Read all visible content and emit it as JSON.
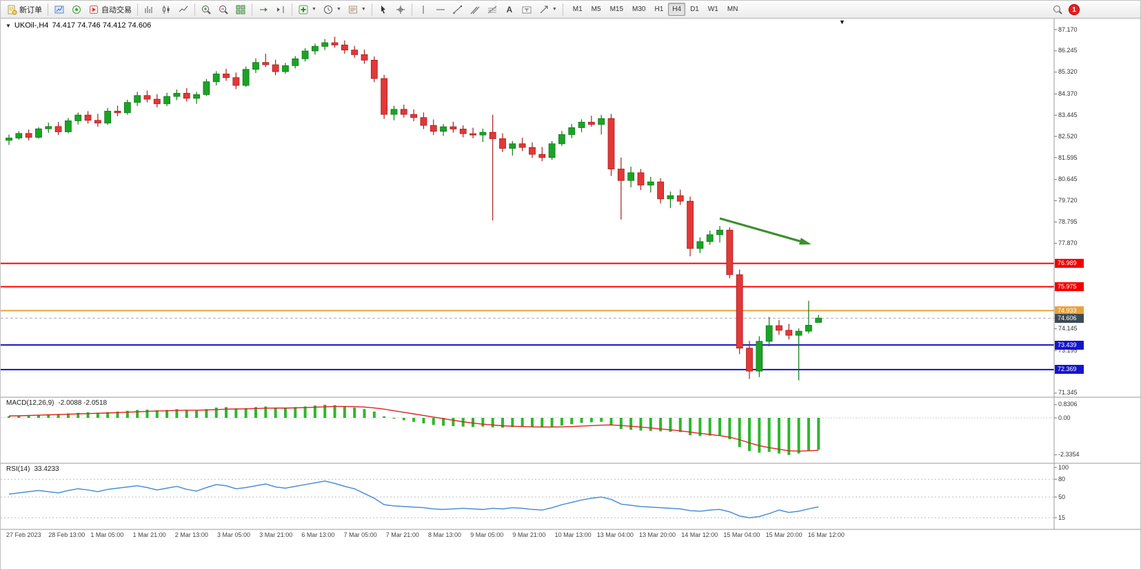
{
  "toolbar": {
    "new_order_label": "新订单",
    "auto_trading_label": "自动交易",
    "timeframes": [
      "M1",
      "M5",
      "M15",
      "M30",
      "H1",
      "H4",
      "D1",
      "W1",
      "MN"
    ],
    "active_timeframe": "H4",
    "notification_count": "1"
  },
  "chart": {
    "title_symbol": "UKOil-,H4",
    "title_ohlc": "74.417 74.746 74.412 74.606"
  },
  "colors": {
    "bull": "#1ca327",
    "bull_dark": "#0c7a14",
    "bear": "#e23838",
    "bear_dark": "#a81d1d",
    "macd_hist": "#2db82d",
    "macd_signal": "#e02020",
    "rsi": "#4a8fd6",
    "arrow": "#3c8f2f",
    "hline_red": "#ff0000",
    "hline_orange": "#e8a33c",
    "hline_blue": "#1212c4"
  },
  "chart_data": {
    "type": "candlestick",
    "symbol": "UKOil-",
    "timeframe": "H4",
    "price_min": 71.345,
    "price_max": 87.17,
    "current_price": 74.606,
    "candles": [
      [
        82.35,
        82.6,
        82.15,
        82.45
      ],
      [
        82.45,
        82.75,
        82.38,
        82.65
      ],
      [
        82.65,
        82.82,
        82.35,
        82.48
      ],
      [
        82.48,
        82.92,
        82.42,
        82.85
      ],
      [
        82.85,
        83.12,
        82.68,
        82.95
      ],
      [
        82.95,
        83.15,
        82.58,
        82.72
      ],
      [
        82.72,
        83.32,
        82.66,
        83.2
      ],
      [
        83.2,
        83.56,
        83.04,
        83.45
      ],
      [
        83.45,
        83.62,
        83.08,
        83.22
      ],
      [
        83.22,
        83.5,
        82.94,
        83.1
      ],
      [
        83.1,
        83.76,
        83.02,
        83.62
      ],
      [
        83.62,
        83.86,
        83.4,
        83.55
      ],
      [
        83.55,
        84.12,
        83.46,
        84.0
      ],
      [
        84.0,
        84.46,
        83.84,
        84.3
      ],
      [
        84.3,
        84.52,
        84.0,
        84.14
      ],
      [
        84.14,
        84.36,
        83.78,
        83.94
      ],
      [
        83.94,
        84.42,
        83.84,
        84.26
      ],
      [
        84.26,
        84.56,
        84.1,
        84.4
      ],
      [
        84.4,
        84.62,
        84.04,
        84.18
      ],
      [
        84.18,
        84.46,
        83.94,
        84.34
      ],
      [
        84.34,
        85.02,
        84.28,
        84.9
      ],
      [
        84.9,
        85.36,
        84.74,
        85.24
      ],
      [
        85.24,
        85.46,
        84.94,
        85.08
      ],
      [
        85.08,
        85.3,
        84.58,
        84.74
      ],
      [
        84.74,
        85.56,
        84.68,
        85.44
      ],
      [
        85.44,
        85.92,
        85.28,
        85.74
      ],
      [
        85.74,
        86.12,
        85.54,
        85.64
      ],
      [
        85.64,
        85.86,
        85.18,
        85.34
      ],
      [
        85.34,
        85.72,
        85.24,
        85.6
      ],
      [
        85.6,
        86.02,
        85.48,
        85.9
      ],
      [
        85.9,
        86.36,
        85.78,
        86.24
      ],
      [
        86.24,
        86.56,
        86.08,
        86.44
      ],
      [
        86.44,
        86.76,
        86.28,
        86.6
      ],
      [
        86.6,
        86.86,
        86.38,
        86.5
      ],
      [
        86.5,
        86.7,
        86.12,
        86.28
      ],
      [
        86.28,
        86.46,
        85.94,
        86.08
      ],
      [
        86.08,
        86.3,
        85.68,
        85.84
      ],
      [
        85.84,
        86.0,
        84.88,
        85.04
      ],
      [
        85.04,
        85.2,
        83.28,
        83.48
      ],
      [
        83.48,
        83.86,
        83.22,
        83.7
      ],
      [
        83.7,
        83.9,
        83.34,
        83.48
      ],
      [
        83.48,
        83.7,
        83.18,
        83.34
      ],
      [
        83.34,
        83.56,
        82.84,
        83.0
      ],
      [
        83.0,
        83.26,
        82.58,
        82.74
      ],
      [
        82.74,
        83.06,
        82.54,
        82.94
      ],
      [
        82.94,
        83.16,
        82.68,
        82.84
      ],
      [
        82.84,
        83.0,
        82.48,
        82.64
      ],
      [
        82.64,
        82.9,
        82.44,
        82.58
      ],
      [
        82.58,
        82.86,
        82.28,
        82.7
      ],
      [
        82.7,
        83.46,
        78.86,
        82.42
      ],
      [
        82.42,
        82.66,
        81.84,
        82.0
      ],
      [
        82.0,
        82.32,
        81.68,
        82.2
      ],
      [
        82.2,
        82.46,
        81.88,
        82.04
      ],
      [
        82.04,
        82.26,
        81.58,
        81.74
      ],
      [
        81.74,
        82.06,
        81.44,
        81.6
      ],
      [
        81.6,
        82.32,
        81.5,
        82.2
      ],
      [
        82.2,
        82.76,
        82.1,
        82.6
      ],
      [
        82.6,
        83.06,
        82.44,
        82.9
      ],
      [
        82.9,
        83.26,
        82.7,
        83.14
      ],
      [
        83.14,
        83.42,
        82.94,
        83.04
      ],
      [
        83.04,
        83.46,
        82.6,
        83.3
      ],
      [
        83.3,
        83.5,
        80.8,
        81.1
      ],
      [
        81.1,
        81.6,
        78.9,
        80.6
      ],
      [
        80.6,
        81.2,
        80.3,
        80.94
      ],
      [
        80.94,
        81.1,
        80.18,
        80.4
      ],
      [
        80.4,
        80.76,
        80.08,
        80.54
      ],
      [
        80.54,
        80.7,
        79.6,
        79.8
      ],
      [
        79.8,
        80.12,
        79.4,
        79.94
      ],
      [
        79.94,
        80.2,
        79.54,
        79.7
      ],
      [
        79.7,
        79.9,
        77.3,
        77.64
      ],
      [
        77.64,
        78.12,
        77.44,
        77.94
      ],
      [
        77.94,
        78.42,
        77.8,
        78.24
      ],
      [
        78.24,
        78.62,
        77.9,
        78.44
      ],
      [
        78.44,
        78.56,
        76.34,
        76.5
      ],
      [
        76.5,
        76.72,
        73.04,
        73.3
      ],
      [
        73.3,
        73.62,
        71.96,
        72.3
      ],
      [
        72.3,
        73.82,
        72.04,
        73.6
      ],
      [
        73.6,
        74.66,
        73.38,
        74.28
      ],
      [
        74.28,
        74.52,
        73.88,
        74.08
      ],
      [
        74.08,
        74.36,
        73.68,
        73.86
      ],
      [
        73.86,
        74.16,
        71.9,
        74.04
      ],
      [
        74.04,
        75.36,
        73.94,
        74.3
      ],
      [
        74.42,
        74.75,
        74.41,
        74.61
      ]
    ],
    "hlines": [
      {
        "price": 76.989,
        "color": "#ff0000",
        "width": 2
      },
      {
        "price": 75.975,
        "color": "#ff0000",
        "width": 2
      },
      {
        "price": 74.933,
        "color": "#e8a33c",
        "width": 2
      },
      {
        "price": 73.439,
        "color": "#1212c4",
        "width": 2
      },
      {
        "price": 72.369,
        "color": "#1212c4",
        "width": 2
      }
    ],
    "arrow": {
      "from": {
        "candle": 72,
        "price": 78.95
      },
      "to": {
        "candle": 81,
        "price": 77.85
      }
    },
    "price_ticks": [
      "87.170",
      "86.245",
      "85.320",
      "84.370",
      "83.445",
      "82.520",
      "81.595",
      "80.645",
      "79.720",
      "78.795",
      "77.870",
      "74.145",
      "73.195",
      "71.345"
    ],
    "price_badges": [
      {
        "value": "76.989",
        "bg": "#f20000"
      },
      {
        "value": "75.975",
        "bg": "#f20000"
      },
      {
        "value": "74.933",
        "bg": "#e8a33c"
      },
      {
        "value": "74.606",
        "bg": "#3d4a56"
      },
      {
        "value": "73.439",
        "bg": "#1414cc"
      },
      {
        "value": "72.369",
        "bg": "#1414cc"
      }
    ],
    "macd": {
      "label": "MACD(12,26,9)",
      "values_text": "-2.0088 -2.0518",
      "axis_ticks": [
        "0.8306",
        "0.00",
        "-2.3354"
      ],
      "max": 0.8306,
      "min": -2.3354,
      "histogram": [
        0.1,
        0.12,
        0.15,
        0.18,
        0.22,
        0.25,
        0.28,
        0.32,
        0.35,
        0.33,
        0.36,
        0.4,
        0.45,
        0.5,
        0.52,
        0.48,
        0.5,
        0.55,
        0.5,
        0.45,
        0.55,
        0.65,
        0.68,
        0.6,
        0.62,
        0.68,
        0.72,
        0.65,
        0.62,
        0.68,
        0.72,
        0.78,
        0.83,
        0.8,
        0.72,
        0.65,
        0.55,
        0.4,
        0.1,
        -0.05,
        -0.15,
        -0.25,
        -0.35,
        -0.45,
        -0.5,
        -0.52,
        -0.55,
        -0.58,
        -0.55,
        -0.6,
        -0.62,
        -0.58,
        -0.55,
        -0.58,
        -0.6,
        -0.55,
        -0.48,
        -0.4,
        -0.32,
        -0.28,
        -0.25,
        -0.45,
        -0.7,
        -0.75,
        -0.8,
        -0.82,
        -0.85,
        -0.88,
        -0.9,
        -1.1,
        -1.15,
        -1.12,
        -1.1,
        -1.35,
        -1.85,
        -2.1,
        -2.2,
        -2.15,
        -2.25,
        -2.34,
        -2.25,
        -2.1,
        -2.01
      ],
      "signal": [
        0.12,
        0.13,
        0.15,
        0.17,
        0.19,
        0.21,
        0.23,
        0.25,
        0.27,
        0.29,
        0.31,
        0.33,
        0.36,
        0.38,
        0.41,
        0.43,
        0.45,
        0.47,
        0.48,
        0.48,
        0.5,
        0.52,
        0.55,
        0.56,
        0.57,
        0.59,
        0.61,
        0.62,
        0.62,
        0.63,
        0.65,
        0.67,
        0.7,
        0.72,
        0.72,
        0.71,
        0.68,
        0.63,
        0.55,
        0.45,
        0.35,
        0.25,
        0.15,
        0.05,
        -0.05,
        -0.15,
        -0.25,
        -0.33,
        -0.4,
        -0.45,
        -0.5,
        -0.53,
        -0.55,
        -0.57,
        -0.58,
        -0.58,
        -0.57,
        -0.55,
        -0.52,
        -0.49,
        -0.46,
        -0.45,
        -0.48,
        -0.53,
        -0.58,
        -0.64,
        -0.7,
        -0.76,
        -0.82,
        -0.9,
        -0.98,
        -1.05,
        -1.12,
        -1.22,
        -1.38,
        -1.58,
        -1.76,
        -1.88,
        -1.98,
        -2.08,
        -2.1,
        -2.08,
        -2.05
      ]
    },
    "rsi": {
      "label": "RSI(14)",
      "value_text": "33.4233",
      "axis_ticks": [
        "100",
        "80",
        "50",
        "15"
      ],
      "levels": [
        80,
        50,
        15
      ],
      "values": [
        55,
        57,
        59,
        61,
        59,
        57,
        61,
        64,
        62,
        59,
        63,
        65,
        67,
        69,
        66,
        62,
        65,
        68,
        63,
        60,
        66,
        71,
        69,
        64,
        66,
        69,
        72,
        67,
        65,
        68,
        71,
        74,
        77,
        73,
        68,
        64,
        56,
        48,
        37,
        35,
        34,
        33,
        32,
        30,
        29,
        30,
        31,
        30,
        29,
        31,
        30,
        32,
        31,
        29,
        28,
        32,
        37,
        41,
        45,
        48,
        50,
        46,
        38,
        36,
        34,
        33,
        32,
        31,
        30,
        27,
        26,
        28,
        29,
        25,
        18,
        15,
        17,
        22,
        28,
        24,
        26,
        30,
        33.42
      ]
    },
    "time_labels": [
      "27 Feb 2023",
      "28 Feb 13:00",
      "1 Mar 05:00",
      "1 Mar 21:00",
      "2 Mar 13:00",
      "3 Mar 05:00",
      "3 Mar 21:00",
      "6 Mar 13:00",
      "7 Mar 05:00",
      "7 Mar 21:00",
      "8 Mar 13:00",
      "9 Mar 05:00",
      "9 Mar 21:00",
      "10 Mar 13:00",
      "13 Mar 04:00",
      "13 Mar 20:00",
      "14 Mar 12:00",
      "15 Mar 04:00",
      "15 Mar 20:00",
      "16 Mar 12:00"
    ]
  }
}
